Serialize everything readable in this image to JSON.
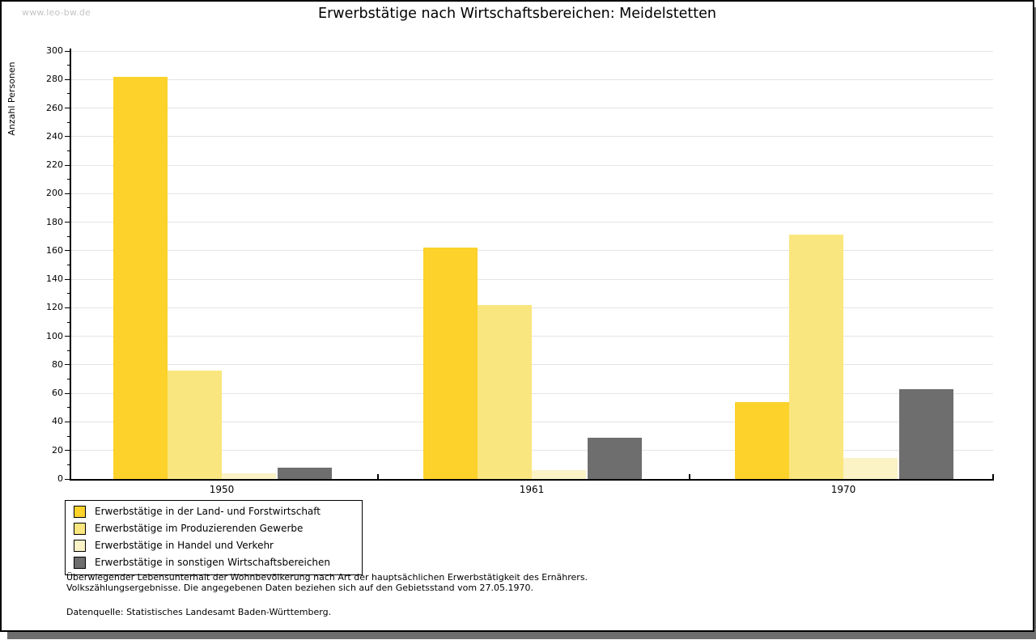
{
  "header": {
    "watermark": "www.leo-bw.de",
    "title": "Erwerbstätige nach Wirtschaftsbereichen: Meidelstetten"
  },
  "chart_data": {
    "type": "bar",
    "title": "Erwerbstätige nach Wirtschaftsbereichen: Meidelstetten",
    "xlabel": "",
    "ylabel": "Anzahl Personen",
    "ylim": [
      0,
      300
    ],
    "y_major_step": 20,
    "y_minor_step": 10,
    "grid": true,
    "legend_position": "bottom-left",
    "categories": [
      "1950",
      "1961",
      "1970"
    ],
    "series": [
      {
        "name": "Erwerbstätige in der Land- und Forstwirtschaft",
        "color": "#FCD22B",
        "values": [
          282,
          162,
          54
        ]
      },
      {
        "name": "Erwerbstätige im Produzierenden Gewerbe",
        "color": "#FAE67E",
        "values": [
          76,
          122,
          171
        ]
      },
      {
        "name": "Erwerbstätige in Handel und Verkehr",
        "color": "#FBF2C6",
        "values": [
          4,
          6,
          15
        ]
      },
      {
        "name": "Erwerbstätige in sonstigen Wirtschaftsbereichen",
        "color": "#6E6E6E",
        "values": [
          8,
          29,
          63
        ]
      }
    ],
    "colors": {
      "gridline": "#E4E4E4",
      "axis": "#000000",
      "shadow": "#6E6E6E",
      "watermark": "#C4C4C4"
    }
  },
  "footer": {
    "note_line1": "Überwiegender Lebensunterhalt der Wohnbevölkerung nach Art der hauptsächlichen Erwerbstätigkeit des Ernährers.",
    "note_line2": "Volkszählungsergebnisse. Die angegebenen Daten beziehen sich auf den Gebietsstand vom 27.05.1970.",
    "source": "Datenquelle: Statistisches Landesamt Baden-Württemberg."
  }
}
